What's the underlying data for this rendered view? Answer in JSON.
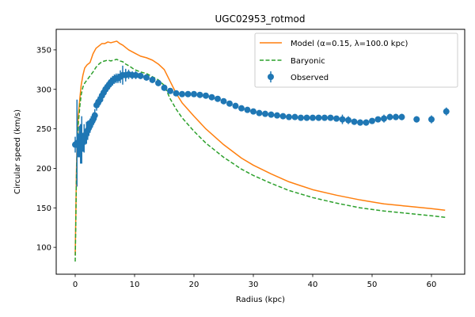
{
  "chart_data": {
    "type": "line",
    "title": "UGC02953_rotmod",
    "xlabel": "Radius (kpc)",
    "ylabel": "Circular speed (km/s)",
    "xlim": [
      -3.2,
      65.6
    ],
    "ylim": [
      66,
      376
    ],
    "xticks": [
      0,
      10,
      20,
      30,
      40,
      50,
      60
    ],
    "yticks": [
      100,
      150,
      200,
      250,
      300,
      350
    ],
    "grid": false,
    "legend_position": "top-right",
    "series": [
      {
        "name": "Model (α=0.15, λ=100.0 kpc)",
        "kind": "line",
        "style": "solid",
        "color": "#ff7f0e",
        "x": [
          0.0,
          0.1,
          0.2,
          0.3,
          0.5,
          0.8,
          1.0,
          1.3,
          1.6,
          2.0,
          2.5,
          3.0,
          3.5,
          4.0,
          4.5,
          5.0,
          5.5,
          6.0,
          6.5,
          7.0,
          7.5,
          8.0,
          8.5,
          9.0,
          10.0,
          11.0,
          12.0,
          13.0,
          14.0,
          15.0,
          16.0,
          17.0,
          18.0,
          20.0,
          22.0,
          25.0,
          28.0,
          30.0,
          33.0,
          36.0,
          40.0,
          44.0,
          48.0,
          52.0,
          56.0,
          60.0,
          62.3
        ],
        "y": [
          90,
          140,
          195,
          230,
          265,
          290,
          305,
          318,
          327,
          331,
          334,
          345,
          352,
          355,
          358,
          358,
          360,
          359,
          360,
          361,
          358,
          356,
          353,
          350,
          346,
          342,
          340,
          337,
          332,
          325,
          310,
          295,
          283,
          266,
          250,
          230,
          213,
          204,
          193,
          183,
          173,
          166,
          160,
          155,
          152,
          149,
          147
        ]
      },
      {
        "name": "Baryonic",
        "kind": "line",
        "style": "dashed",
        "color": "#2ca02c",
        "x": [
          0.0,
          0.1,
          0.2,
          0.3,
          0.5,
          0.8,
          1.0,
          1.3,
          1.6,
          2.0,
          2.5,
          3.0,
          3.5,
          4.0,
          4.5,
          5.0,
          5.5,
          6.0,
          6.5,
          7.0,
          7.5,
          8.0,
          8.5,
          9.0,
          10.0,
          11.0,
          12.0,
          13.0,
          14.0,
          15.0,
          16.0,
          17.0,
          18.0,
          20.0,
          22.0,
          25.0,
          28.0,
          30.0,
          33.0,
          36.0,
          40.0,
          44.0,
          48.0,
          52.0,
          56.0,
          60.0,
          62.3
        ],
        "y": [
          82,
          130,
          185,
          220,
          255,
          280,
          293,
          303,
          308,
          312,
          317,
          322,
          328,
          332,
          335,
          336,
          337,
          336,
          337,
          338,
          336,
          335,
          332,
          330,
          325,
          322,
          320,
          316,
          312,
          305,
          288,
          275,
          264,
          247,
          232,
          214,
          199,
          191,
          181,
          172,
          163,
          156,
          150,
          146,
          143,
          140,
          138
        ]
      },
      {
        "name": "Observed",
        "kind": "errorbar",
        "color": "#1f77b4",
        "x": [
          0.0,
          0.3,
          0.5,
          0.7,
          0.9,
          1.1,
          1.3,
          1.5,
          1.7,
          1.9,
          2.1,
          2.3,
          2.5,
          2.7,
          2.9,
          3.1,
          3.3,
          3.6,
          3.9,
          4.2,
          4.5,
          4.8,
          5.1,
          5.4,
          5.7,
          6.0,
          6.3,
          6.6,
          6.9,
          7.2,
          7.6,
          8.0,
          8.5,
          9.0,
          9.6,
          10.2,
          11.0,
          12.0,
          13.0,
          14.0,
          15.0,
          16.0,
          17.0,
          18.0,
          19.0,
          20.0,
          21.0,
          22.0,
          23.0,
          24.0,
          25.0,
          26.0,
          27.0,
          28.0,
          29.0,
          30.0,
          31.0,
          32.0,
          33.0,
          34.0,
          35.0,
          36.0,
          37.0,
          38.0,
          39.0,
          40.0,
          41.0,
          42.0,
          43.0,
          44.0,
          45.0,
          46.0,
          47.0,
          48.0,
          49.0,
          50.0,
          51.0,
          52.0,
          53.0,
          54.0,
          55.0,
          57.5,
          60.0,
          62.5
        ],
        "y": [
          230,
          232,
          229,
          234,
          231,
          236,
          233,
          238,
          240,
          245,
          248,
          251,
          254,
          258,
          260,
          263,
          267,
          280,
          284,
          287,
          292,
          296,
          300,
          303,
          306,
          309,
          311,
          313,
          314,
          314,
          316,
          318,
          318,
          319,
          318,
          318,
          317,
          315,
          312,
          308,
          302,
          298,
          295,
          294,
          294,
          294,
          293,
          292,
          290,
          288,
          285,
          282,
          279,
          276,
          274,
          272,
          270,
          269,
          268,
          267,
          266,
          265,
          265,
          264,
          264,
          264,
          264,
          264,
          264,
          263,
          262,
          261,
          259,
          258,
          258,
          260,
          262,
          263,
          265,
          265,
          265,
          262,
          262,
          272
        ],
        "yerr": [
          10,
          55,
          15,
          20,
          25,
          30,
          12,
          18,
          10,
          14,
          12,
          10,
          9,
          8,
          8,
          8,
          8,
          7,
          7,
          7,
          6,
          6,
          6,
          6,
          6,
          6,
          6,
          6,
          6,
          6,
          8,
          12,
          8,
          6,
          5,
          5,
          4,
          4,
          4,
          4,
          4,
          3,
          3,
          3,
          3,
          3,
          3,
          3,
          3,
          3,
          3,
          3,
          3,
          3,
          3,
          3,
          3,
          3,
          3,
          3,
          3,
          3,
          3,
          3,
          3,
          3,
          3,
          3,
          3,
          3,
          6,
          5,
          4,
          4,
          4,
          3,
          3,
          5,
          4,
          4,
          4,
          4,
          5,
          5
        ]
      }
    ]
  }
}
